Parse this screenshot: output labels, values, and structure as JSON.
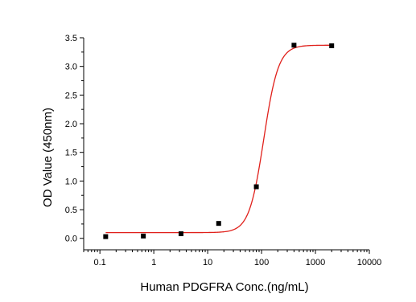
{
  "chart_data": {
    "type": "scatter",
    "title": "",
    "xlabel": "Human PDGFRA Conc.(ng/mL)",
    "ylabel": "OD Value (450nm)",
    "x_scale": "log",
    "xlim": [
      0.05,
      10000
    ],
    "ylim": [
      -0.2,
      3.5
    ],
    "x_ticks": [
      0.1,
      1,
      10,
      100,
      1000,
      10000
    ],
    "x_tick_labels": [
      "0.1",
      "1",
      "10",
      "100",
      "1000",
      "10000"
    ],
    "y_ticks": [
      0.0,
      0.5,
      1.0,
      1.5,
      2.0,
      2.5,
      3.0,
      3.5
    ],
    "y_tick_labels": [
      "0.0",
      "0.5",
      "1.0",
      "1.5",
      "2.0",
      "2.5",
      "3.0",
      "3.5"
    ],
    "grid": false,
    "legend": "none",
    "series": [
      {
        "points": [
          {
            "x": 0.128,
            "y": 0.03
          },
          {
            "x": 0.64,
            "y": 0.04
          },
          {
            "x": 3.2,
            "y": 0.08
          },
          {
            "x": 16,
            "y": 0.26
          },
          {
            "x": 80,
            "y": 0.9
          },
          {
            "x": 400,
            "y": 3.37
          },
          {
            "x": 2000,
            "y": 3.36
          }
        ],
        "marker": "square",
        "color": "#000000"
      }
    ],
    "fit_curve": {
      "model": "4PL",
      "bottom": 0.1,
      "top": 3.37,
      "ec50": 110,
      "hill": 3.2,
      "x_range": [
        0.128,
        2000
      ],
      "color": "#e0201b"
    },
    "axis_color": "#000000"
  }
}
